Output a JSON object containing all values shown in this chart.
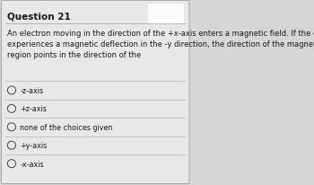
{
  "title": "Question 21",
  "question_text": "An electron moving in the direction of the +x-axis enters a magnetic field. If the electron\nexperiences a magnetic deflection in the -y direction, the direction of the magnetic field in this\nregion points in the direction of the",
  "choices": [
    "-z-axis",
    "+z-axis",
    "none of the choices given",
    "+y-axis",
    "-x-axis"
  ],
  "bg_color": "#d6d6d6",
  "panel_color": "#e8e8e8",
  "title_fontsize": 7.5,
  "question_fontsize": 6.0,
  "choice_fontsize": 5.8,
  "text_color": "#1a1a1a",
  "border_color": "#aaaaaa",
  "radio_color": "#555555"
}
